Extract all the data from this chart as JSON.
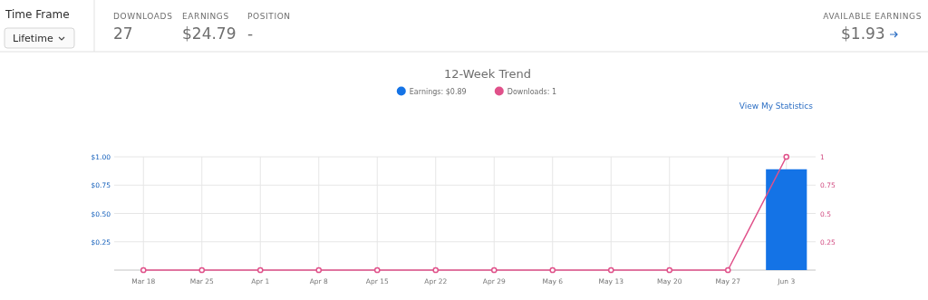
{
  "chart_data": {
    "type": "bar",
    "title": "12-Week Trend",
    "categories": [
      "Mar 18",
      "Mar 25",
      "Apr 1",
      "Apr 8",
      "Apr 15",
      "Apr 22",
      "Apr 29",
      "May 6",
      "May 13",
      "May 20",
      "May 27",
      "Jun 3"
    ],
    "series": [
      {
        "name": "Earnings: $0.89",
        "color": "#1473e6",
        "values": [
          0,
          0,
          0,
          0,
          0,
          0,
          0,
          0,
          0,
          0,
          0,
          0.89
        ]
      },
      {
        "name": "Downloads: 1",
        "type": "line",
        "axis": "y2",
        "color": "#e0518a",
        "values": [
          0,
          0,
          0,
          0,
          0,
          0,
          0,
          0,
          0,
          0,
          0,
          1
        ]
      }
    ],
    "ylim": [
      0,
      1.0
    ],
    "yticks": [
      {
        "value": 0,
        "label": null
      },
      {
        "value": 0.25,
        "label": "$0.25"
      },
      {
        "value": 0.5,
        "label": "$0.50"
      },
      {
        "value": 0.75,
        "label": "$0.75"
      },
      {
        "value": 1,
        "label": "$1.00"
      }
    ],
    "y2lim": [
      0,
      1
    ],
    "y2ticks": [
      0.25,
      0.5,
      0.75,
      1
    ],
    "grid": true,
    "legend": "top",
    "marker": "circle",
    "line_style": "solid",
    "annotations": [
      "Time Frame",
      "Lifetime",
      "DOWNLOADS",
      "27",
      "EARNINGS",
      "$24.79",
      "POSITION",
      "-",
      "AVAILABLE EARNINGS",
      "$1.93",
      "View My Statistics"
    ]
  }
}
